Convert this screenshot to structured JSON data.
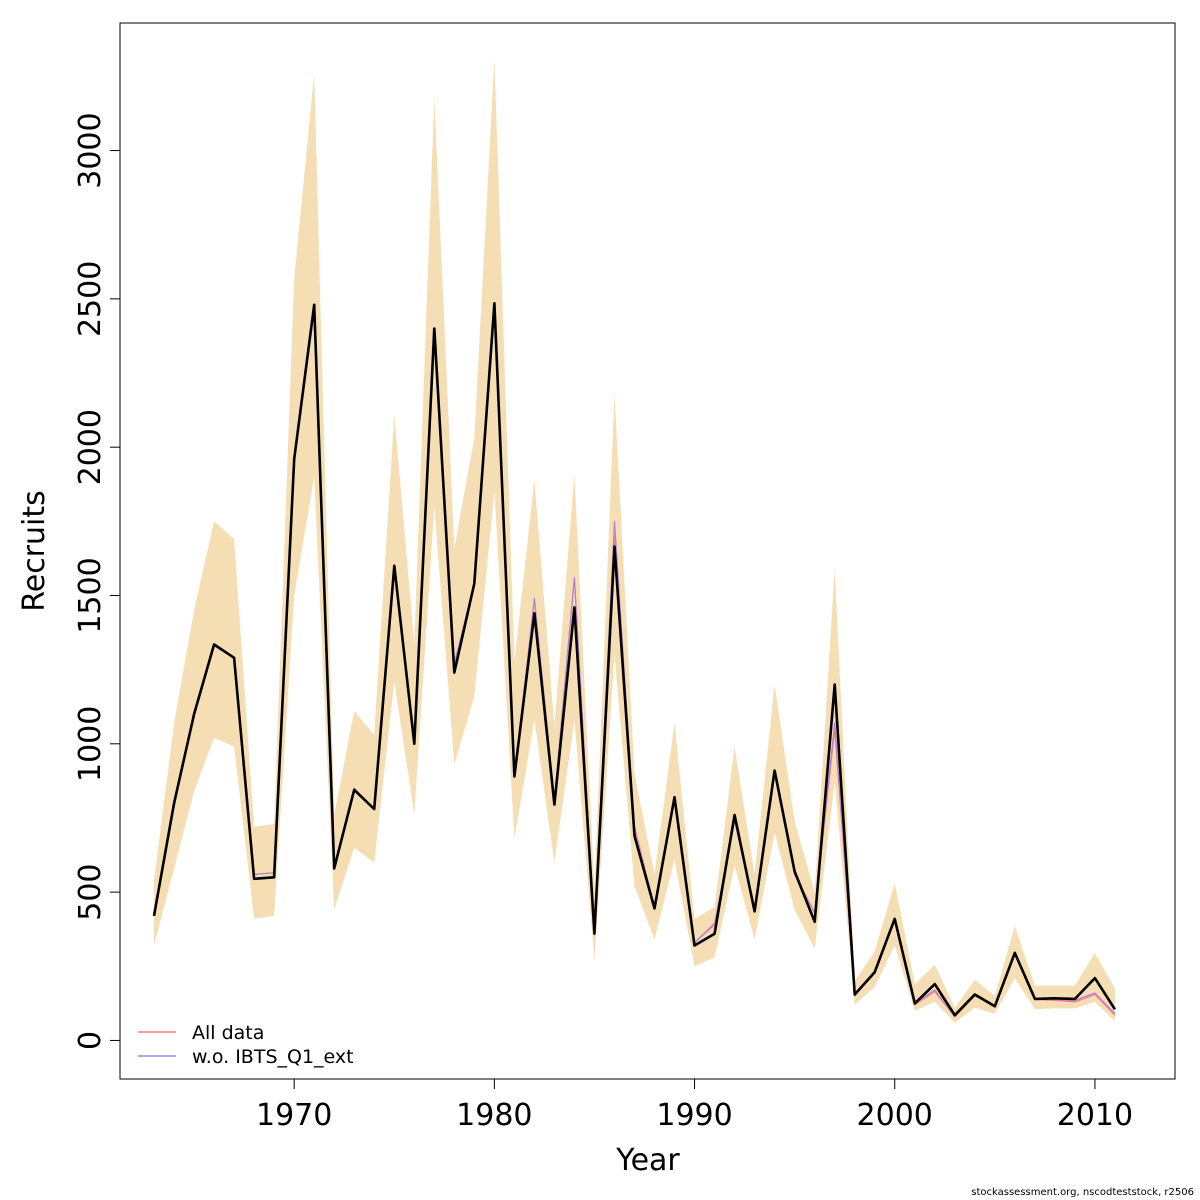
{
  "chart_data": {
    "type": "line",
    "xlabel": "Year",
    "ylabel": "Recruits",
    "xlim": [
      1961.3,
      2014.0
    ],
    "ylim": [
      -130,
      3430
    ],
    "x_ticks": [
      1970,
      1980,
      1990,
      2000,
      2010
    ],
    "y_ticks": [
      0,
      500,
      1000,
      1500,
      2000,
      2500,
      3000
    ],
    "legend_position": "bottom-left",
    "x": [
      1963,
      1964,
      1965,
      1966,
      1967,
      1968,
      1969,
      1970,
      1971,
      1972,
      1973,
      1974,
      1975,
      1976,
      1977,
      1978,
      1979,
      1980,
      1981,
      1982,
      1983,
      1984,
      1985,
      1986,
      1987,
      1988,
      1989,
      1990,
      1991,
      1992,
      1993,
      1994,
      1995,
      1996,
      1997,
      1998,
      1999,
      2000,
      2001,
      2002,
      2003,
      2004,
      2005,
      2006,
      2007,
      2008,
      2009,
      2010,
      2011
    ],
    "band": {
      "color": "#f5deb3",
      "lower": [
        320,
        580,
        840,
        1020,
        990,
        410,
        420,
        1500,
        1900,
        440,
        650,
        600,
        1210,
        760,
        1800,
        930,
        1160,
        1850,
        680,
        1080,
        600,
        1080,
        270,
        1300,
        520,
        340,
        610,
        250,
        280,
        590,
        340,
        700,
        440,
        310,
        870,
        120,
        180,
        320,
        100,
        130,
        60,
        110,
        90,
        210,
        105,
        108,
        108,
        130,
        65
      ],
      "upper": [
        540,
        1070,
        1450,
        1750,
        1690,
        720,
        730,
        2570,
        3260,
        760,
        1110,
        1030,
        2110,
        1340,
        3180,
        1660,
        2030,
        3310,
        1280,
        1890,
        1060,
        1910,
        510,
        2180,
        900,
        560,
        1070,
        410,
        450,
        990,
        560,
        1200,
        740,
        500,
        1590,
        200,
        300,
        530,
        190,
        255,
        110,
        205,
        150,
        385,
        185,
        185,
        185,
        295,
        175
      ]
    },
    "series": [
      {
        "name": "All data",
        "color": "#f08080",
        "width": 1.2,
        "values": [
          420,
          790,
          1110,
          1330,
          1290,
          560,
          565,
          1950,
          2480,
          580,
          850,
          780,
          1600,
          1000,
          2400,
          1270,
          1540,
          2480,
          890,
          1490,
          810,
          1560,
          370,
          1700,
          720,
          450,
          820,
          330,
          390,
          740,
          440,
          900,
          560,
          430,
          1050,
          150,
          230,
          410,
          120,
          165,
          80,
          150,
          115,
          295,
          138,
          135,
          130,
          155,
          85
        ]
      },
      {
        "name": "w.o. IBTS_Q1_ext",
        "color": "#b57edc",
        "width": 1.2,
        "values": [
          420,
          790,
          1110,
          1330,
          1290,
          560,
          565,
          1950,
          2480,
          580,
          850,
          780,
          1600,
          1000,
          2400,
          1270,
          1540,
          2480,
          890,
          1490,
          810,
          1560,
          370,
          1750,
          710,
          450,
          820,
          330,
          395,
          740,
          440,
          900,
          560,
          430,
          1070,
          150,
          235,
          410,
          125,
          170,
          80,
          152,
          116,
          295,
          140,
          138,
          135,
          160,
          90
        ]
      },
      {
        "width": 2.6,
        "color": "#000000",
        "values": [
          420,
          800,
          1100,
          1335,
          1290,
          545,
          550,
          1960,
          2480,
          580,
          845,
          780,
          1600,
          1000,
          2400,
          1240,
          1540,
          2485,
          890,
          1440,
          795,
          1460,
          360,
          1665,
          690,
          445,
          820,
          320,
          360,
          760,
          435,
          910,
          570,
          400,
          1200,
          155,
          230,
          410,
          125,
          190,
          85,
          155,
          115,
          295,
          140,
          142,
          140,
          210,
          105
        ]
      }
    ]
  },
  "legend": {
    "items": [
      {
        "label": "All data",
        "color": "#f08080"
      },
      {
        "label": "w.o. IBTS_Q1_ext",
        "color": "#b57edc"
      }
    ]
  },
  "footer": {
    "text": "stockassessment.org, nscodteststock, r2506"
  }
}
